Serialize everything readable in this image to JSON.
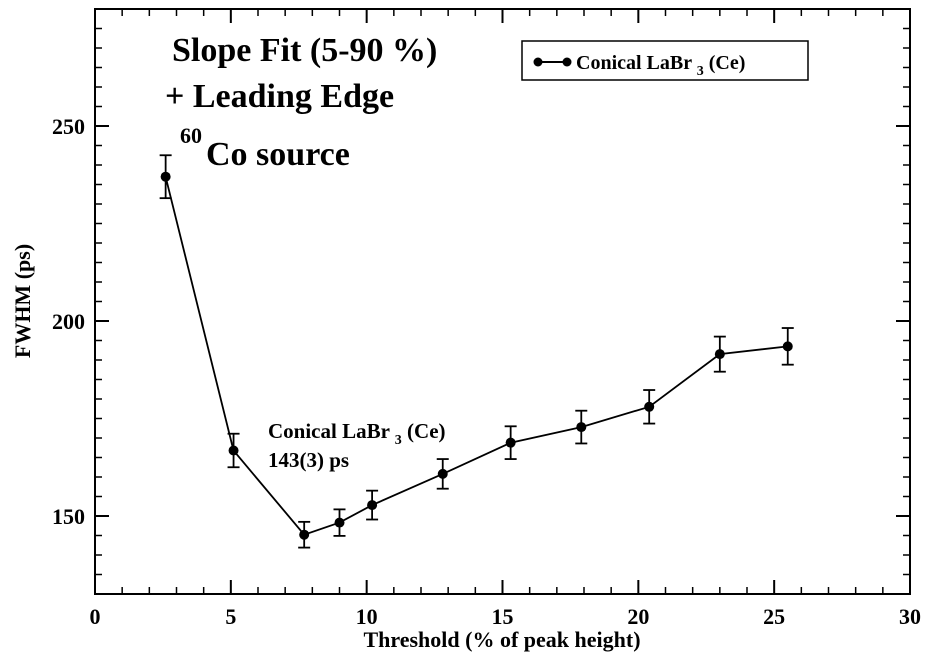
{
  "chart_data": {
    "type": "scatter",
    "xlabel": "Threshold (% of peak height)",
    "ylabel": "FWHM (ps)",
    "xlim": [
      0,
      30
    ],
    "ylim": [
      130,
      280
    ],
    "x_ticks": [
      0,
      5,
      10,
      15,
      20,
      25,
      30
    ],
    "y_ticks": [
      150,
      200,
      250
    ],
    "x_tick_labels": [
      "0",
      "5",
      "10",
      "15",
      "20",
      "25",
      "30"
    ],
    "y_tick_labels": [
      "150",
      "200",
      "250"
    ],
    "grid": false,
    "legend_position": "top-right",
    "series": [
      {
        "name": "Conical LaBr3(Ce)",
        "color": "#000000",
        "marker": "circle",
        "connected": true,
        "x": [
          2.6,
          5.1,
          7.7,
          9.0,
          10.2,
          12.8,
          15.3,
          17.9,
          20.4,
          23.0,
          25.5
        ],
        "y": [
          237,
          166.8,
          145.2,
          148.3,
          152.8,
          160.8,
          168.8,
          172.8,
          178.0,
          191.5,
          193.5
        ],
        "yerr": [
          5.5,
          4.3,
          3.3,
          3.4,
          3.7,
          3.8,
          4.2,
          4.2,
          4.3,
          4.5,
          4.7
        ]
      }
    ],
    "legend": {
      "label": "Conical LaBr",
      "sub": "3",
      "suffix": "(Ce)"
    },
    "annotations": {
      "method_line1": "Slope Fit (5-90 %)",
      "method_line2": "+ Leading Edge",
      "source_sup": "60",
      "source_text": "Co source",
      "result_line1_main": "Conical LaBr",
      "result_line1_sub": "3",
      "result_line1_suffix": "(Ce)",
      "result_line2": "143(3) ps"
    }
  }
}
